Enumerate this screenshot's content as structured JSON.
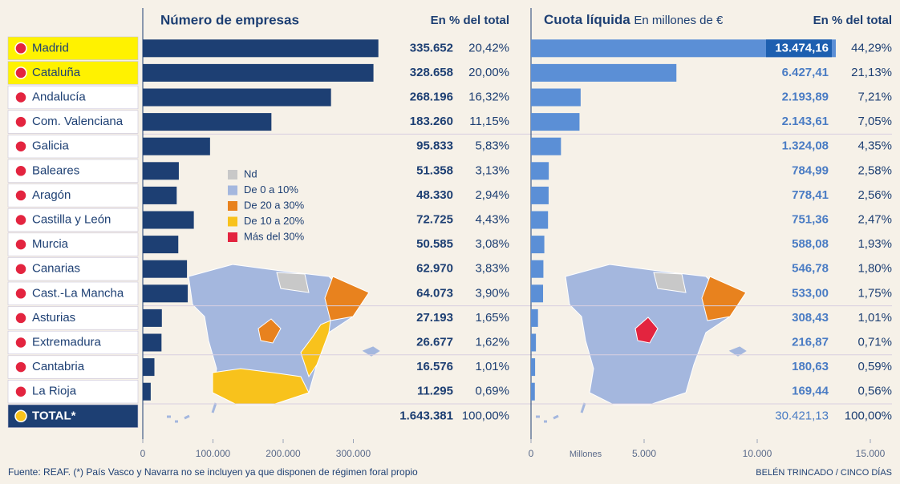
{
  "chart_data": [
    {
      "type": "bar",
      "orientation": "horizontal",
      "title": "Número de empresas",
      "share_title": "En % del total",
      "categories": [
        "Madrid",
        "Cataluña",
        "Andalucía",
        "Com. Valenciana",
        "Galicia",
        "Baleares",
        "Aragón",
        "Castilla y León",
        "Murcia",
        "Canarias",
        "Cast.-La Mancha",
        "Asturias",
        "Extremadura",
        "Cantabria",
        "La Rioja"
      ],
      "values": [
        335652,
        328658,
        268196,
        183260,
        95833,
        51358,
        48330,
        72725,
        50585,
        62970,
        64073,
        27193,
        26677,
        16576,
        11295
      ],
      "value_labels": [
        "335.652",
        "328.658",
        "268.196",
        "183.260",
        "95.833",
        "51.358",
        "48.330",
        "72.725",
        "50.585",
        "62.970",
        "64.073",
        "27.193",
        "26.677",
        "16.576",
        "11.295"
      ],
      "shares": [
        20.42,
        20.0,
        16.32,
        11.15,
        5.83,
        3.13,
        2.94,
        4.43,
        3.08,
        3.83,
        3.9,
        1.65,
        1.62,
        1.01,
        0.69
      ],
      "share_labels": [
        "20,42%",
        "20,00%",
        "16,32%",
        "11,15%",
        "5,83%",
        "3,13%",
        "2,94%",
        "4,43%",
        "3,08%",
        "3,83%",
        "3,90%",
        "1,65%",
        "1,62%",
        "1,01%",
        "0,69%"
      ],
      "highlight": [
        0,
        1
      ],
      "total": {
        "label": "TOTAL*",
        "value": 1643381,
        "value_label": "1.643.381",
        "share": 100,
        "share_label": "100,00%"
      },
      "xlim": [
        0,
        340000
      ],
      "xticks": [
        0,
        {
          "value": 100000,
          "label": "100.000"
        },
        {
          "value": 200000,
          "label": "200.000"
        },
        {
          "value": 300000,
          "label": "300.000"
        }
      ],
      "color": "#1d3f73"
    },
    {
      "type": "bar",
      "orientation": "horizontal",
      "title": "Cuota líquida",
      "subtitle": "En millones de €",
      "share_title": "En % del total",
      "values": [
        13474.16,
        6427.41,
        2193.89,
        2143.61,
        1324.08,
        784.99,
        778.41,
        751.36,
        588.08,
        546.78,
        533.0,
        308.43,
        216.87,
        180.63,
        169.44
      ],
      "value_labels": [
        "13.474,16",
        "6.427,41",
        "2.193,89",
        "2.143,61",
        "1.324,08",
        "784,99",
        "778,41",
        "751,36",
        "588,08",
        "546,78",
        "533,00",
        "308,43",
        "216,87",
        "180,63",
        "169,44"
      ],
      "shares": [
        44.29,
        21.13,
        7.21,
        7.05,
        4.35,
        2.58,
        2.56,
        2.47,
        1.93,
        1.8,
        1.75,
        1.01,
        0.71,
        0.59,
        0.56
      ],
      "share_labels": [
        "44,29%",
        "21,13%",
        "7,21%",
        "7,05%",
        "4,35%",
        "2,58%",
        "2,56%",
        "2,47%",
        "1,93%",
        "1,80%",
        "1,75%",
        "1,01%",
        "0,71%",
        "0,59%",
        "0,56%"
      ],
      "total": {
        "value": 30421.13,
        "value_label": "30.421,13",
        "share": 100,
        "share_label": "100,00%"
      },
      "xlabel": "Millones",
      "xlim": [
        0,
        15000
      ],
      "xticks": [
        0,
        {
          "value": 5000,
          "label": "5.000"
        },
        {
          "value": 10000,
          "label": "10.000"
        },
        {
          "value": 15000,
          "label": "15.000"
        }
      ],
      "color": "#5b8fd6"
    }
  ],
  "map_legend": [
    {
      "label": "Nd",
      "color": "#c8c8c8"
    },
    {
      "label": "De 0 a 10%",
      "color": "#a4b7de"
    },
    {
      "label": "De 20 a 30%",
      "color": "#e8821e"
    },
    {
      "label": "De 10 a 20%",
      "color": "#f8c21c"
    },
    {
      "label": "Más del 30%",
      "color": "#e3243f"
    }
  ],
  "source": "Fuente: REAF. (*) País Vasco y Navarra no se incluyen ya que disponen de régimen foral propio",
  "credit": "BELÉN TRINCADO / CINCO DÍAS"
}
